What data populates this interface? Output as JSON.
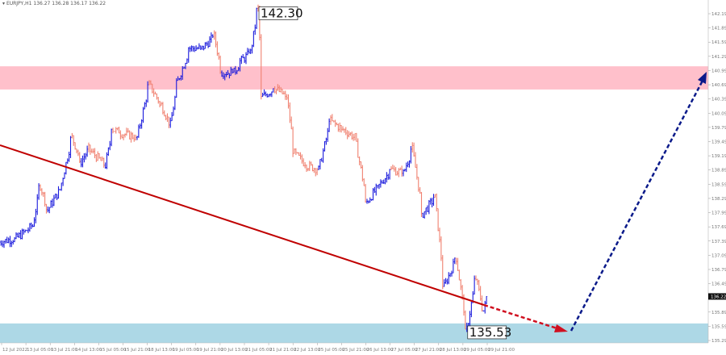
{
  "header": {
    "symbol": "EURJPY,H1",
    "quote": "136.27 136.28 136.17 136.22"
  },
  "colors": {
    "up_wave": "#1a1adc",
    "down_wave": "#f08070",
    "resistance_zone": "#ffc0cb",
    "support_zone": "#add8e6",
    "trendline": "#c00000",
    "projection_down": "#d01020",
    "projection_up": "#0a1a8a"
  },
  "chart_data": {
    "type": "ohlc-bar",
    "timeframe": "H1",
    "title": "",
    "ylim": [
      135.2,
      142.45
    ],
    "y_ticks": [
      "142.19",
      "141.89",
      "141.59",
      "141.29",
      "140.99",
      "140.69",
      "140.39",
      "140.09",
      "139.79",
      "139.49",
      "139.19",
      "138.89",
      "138.59",
      "138.29",
      "137.99",
      "137.69",
      "137.39",
      "137.09",
      "136.79",
      "136.49",
      "135.89",
      "135.59",
      "135.29"
    ],
    "current_price": "136.22",
    "x_ticks": [
      "12 Jul 2022",
      "13 Jul 05:00",
      "13 Jul 21:00",
      "14 Jul 13:00",
      "15 Jul 05:00",
      "15 Jul 21:00",
      "18 Jul 13:00",
      "19 Jul 05:00",
      "19 Jul 21:00",
      "20 Jul 13:00",
      "21 Jul 05:00",
      "21 Jul 21:00",
      "22 Jul 13:00",
      "25 Jul 05:00",
      "25 Jul 21:00",
      "26 Jul 13:00",
      "27 Jul 05:00",
      "27 Jul 21:00",
      "28 Jul 13:00",
      "29 Jul 05:00",
      "29 Jul 21:00"
    ],
    "price_path": [
      {
        "t": "12 Jul 10:00",
        "p": 137.37
      },
      {
        "t": "12 Jul 21:00",
        "p": 137.45
      },
      {
        "t": "13 Jul 08:00",
        "p": 137.71
      },
      {
        "t": "13 Jul 13:00",
        "p": 138.56
      },
      {
        "t": "13 Jul 18:00",
        "p": 138.05
      },
      {
        "t": "14 Jul 02:00",
        "p": 138.48
      },
      {
        "t": "14 Jul 10:00",
        "p": 139.58
      },
      {
        "t": "14 Jul 16:00",
        "p": 139.07
      },
      {
        "t": "14 Jul 21:00",
        "p": 139.33
      },
      {
        "t": "15 Jul 08:00",
        "p": 138.99
      },
      {
        "t": "15 Jul 13:00",
        "p": 139.75
      },
      {
        "t": "15 Jul 18:00",
        "p": 139.67
      },
      {
        "t": "18 Jul 05:00",
        "p": 139.58
      },
      {
        "t": "18 Jul 13:00",
        "p": 140.69
      },
      {
        "t": "18 Jul 21:00",
        "p": 140.26
      },
      {
        "t": "19 Jul 03:00",
        "p": 139.84
      },
      {
        "t": "19 Jul 08:00",
        "p": 140.78
      },
      {
        "t": "19 Jul 16:00",
        "p": 141.46
      },
      {
        "t": "20 Jul 00:00",
        "p": 141.46
      },
      {
        "t": "20 Jul 08:00",
        "p": 141.71
      },
      {
        "t": "20 Jul 13:00",
        "p": 140.95
      },
      {
        "t": "20 Jul 21:00",
        "p": 140.95
      },
      {
        "t": "21 Jul 02:00",
        "p": 141.2
      },
      {
        "t": "21 Jul 08:00",
        "p": 141.37
      },
      {
        "t": "21 Jul 13:00",
        "p": 142.3
      },
      {
        "t": "21 Jul 16:00",
        "p": 140.44
      },
      {
        "t": "22 Jul 00:00",
        "p": 140.61
      },
      {
        "t": "22 Jul 08:00",
        "p": 140.44
      },
      {
        "t": "22 Jul 13:00",
        "p": 139.24
      },
      {
        "t": "22 Jul 21:00",
        "p": 138.99
      },
      {
        "t": "25 Jul 05:00",
        "p": 138.9
      },
      {
        "t": "25 Jul 13:00",
        "p": 139.92
      },
      {
        "t": "25 Jul 21:00",
        "p": 139.75
      },
      {
        "t": "26 Jul 05:00",
        "p": 139.58
      },
      {
        "t": "26 Jul 13:00",
        "p": 138.22
      },
      {
        "t": "26 Jul 21:00",
        "p": 138.56
      },
      {
        "t": "27 Jul 05:00",
        "p": 138.9
      },
      {
        "t": "27 Jul 13:00",
        "p": 138.82
      },
      {
        "t": "27 Jul 19:00",
        "p": 139.33
      },
      {
        "t": "28 Jul 02:00",
        "p": 137.97
      },
      {
        "t": "28 Jul 10:00",
        "p": 138.31
      },
      {
        "t": "28 Jul 16:00",
        "p": 136.43
      },
      {
        "t": "29 Jul 00:00",
        "p": 137.03
      },
      {
        "t": "29 Jul 07:00",
        "p": 135.53
      },
      {
        "t": "29 Jul 13:00",
        "p": 136.6
      },
      {
        "t": "29 Jul 18:00",
        "p": 135.92
      },
      {
        "t": "29 Jul 21:00",
        "p": 136.22
      }
    ],
    "zones": [
      {
        "kind": "resistance",
        "from": 140.59,
        "to": 141.08
      },
      {
        "kind": "support",
        "from": 135.15,
        "to": 135.65
      }
    ],
    "annotations": [
      {
        "text": "142.30",
        "at": "21 Jul 13:00",
        "price": 142.3
      },
      {
        "text": "135.53",
        "at": "29 Jul 07:00",
        "price": 135.53
      }
    ]
  }
}
